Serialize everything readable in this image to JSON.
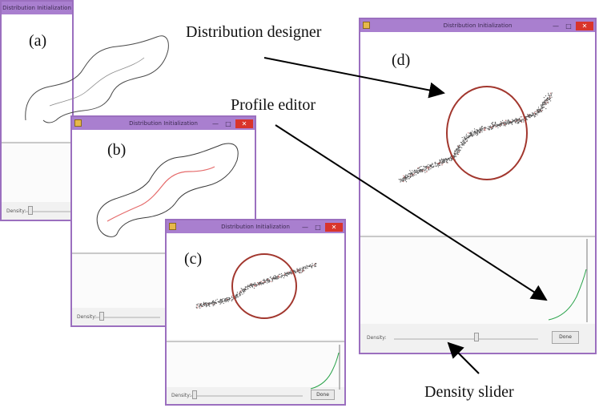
{
  "windows": {
    "a": {
      "title": "Distribution Initialization",
      "label": "(a)",
      "density_label": "Density:"
    },
    "b": {
      "title": "Distribution Initialization",
      "label": "(b)",
      "density_label": "Density:"
    },
    "c": {
      "title": "Distribution Initialization",
      "label": "(c)",
      "density_label": "Density:",
      "done_label": "Done"
    },
    "d": {
      "title": "Distribution Initialization",
      "label": "(d)",
      "density_label": "Density:",
      "done_label": "Done"
    }
  },
  "annotations": {
    "distribution_designer": "Distribution designer",
    "profile_editor": "Profile editor",
    "density_slider": "Density slider"
  },
  "controls": {
    "minimize": "—",
    "maximize": "□",
    "close": "✕"
  },
  "colors": {
    "window_border": "#9b6fbf",
    "titlebar": "#a97fcf",
    "close": "#d9342b",
    "circle": "#a2372e",
    "profile_curve": "#2aa34a",
    "red_path": "#e56a6a"
  }
}
